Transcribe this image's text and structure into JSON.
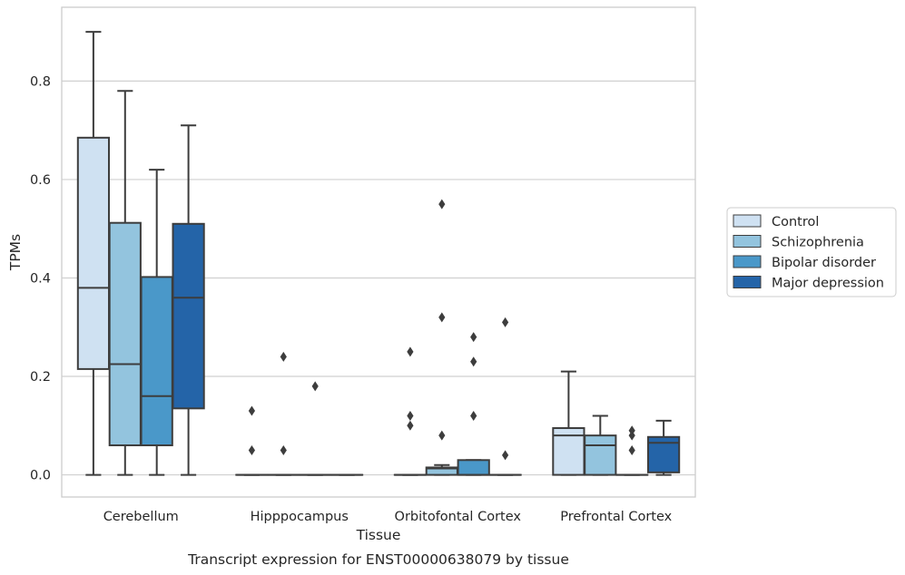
{
  "chart_data": {
    "type": "box",
    "xlabel": "Tissue",
    "ylabel": "TPMs",
    "caption": "Transcript expression for ENST00000638079 by tissue",
    "categories": [
      "Cerebellum",
      "Hipppocampus",
      "Orbitofontal Cortex",
      "Prefrontal Cortex"
    ],
    "ylim": [
      -0.045,
      0.95
    ],
    "yticks": [
      0.0,
      0.2,
      0.4,
      0.6,
      0.8
    ],
    "ytick_labels": [
      "0.0",
      "0.2",
      "0.4",
      "0.6",
      "0.8"
    ],
    "grid": "horizontal",
    "legend_placement": "right",
    "colors": {
      "Control": "#cfe1f2",
      "Schizophrenia": "#93c4de",
      "Bipolar disorder": "#4a98c9",
      "Major depression": "#2464a8",
      "line": "#3d3d3d",
      "grid": "#d0d0d0",
      "frame": "#cccccc"
    },
    "series": [
      {
        "name": "Control",
        "boxes": [
          {
            "min": 0.0,
            "q1": 0.215,
            "median": 0.38,
            "q3": 0.685,
            "max": 0.9,
            "fliers": []
          },
          {
            "min": 0.0,
            "q1": 0.0,
            "median": 0.0,
            "q3": 0.0,
            "max": 0.0,
            "fliers": [
              0.05,
              0.13
            ]
          },
          {
            "min": 0.0,
            "q1": 0.0,
            "median": 0.0,
            "q3": 0.0,
            "max": 0.0,
            "fliers": [
              0.1,
              0.12,
              0.25
            ]
          },
          {
            "min": 0.0,
            "q1": 0.0,
            "median": 0.08,
            "q3": 0.095,
            "max": 0.21,
            "fliers": []
          }
        ]
      },
      {
        "name": "Schizophrenia",
        "boxes": [
          {
            "min": 0.0,
            "q1": 0.06,
            "median": 0.225,
            "q3": 0.512,
            "max": 0.78,
            "fliers": []
          },
          {
            "min": 0.0,
            "q1": 0.0,
            "median": 0.0,
            "q3": 0.0,
            "max": 0.0,
            "fliers": [
              0.05,
              0.24
            ]
          },
          {
            "min": 0.0,
            "q1": 0.0,
            "median": 0.013,
            "q3": 0.015,
            "max": 0.02,
            "fliers": [
              0.08,
              0.32,
              0.55
            ]
          },
          {
            "min": 0.0,
            "q1": 0.0,
            "median": 0.06,
            "q3": 0.08,
            "max": 0.12,
            "fliers": []
          }
        ]
      },
      {
        "name": "Bipolar disorder",
        "boxes": [
          {
            "min": 0.0,
            "q1": 0.06,
            "median": 0.16,
            "q3": 0.402,
            "max": 0.62,
            "fliers": []
          },
          {
            "min": 0.0,
            "q1": 0.0,
            "median": 0.0,
            "q3": 0.0,
            "max": 0.0,
            "fliers": [
              0.18
            ]
          },
          {
            "min": 0.0,
            "q1": 0.0,
            "median": 0.0,
            "q3": 0.03,
            "max": 0.03,
            "fliers": [
              0.12,
              0.23,
              0.28
            ]
          },
          {
            "min": 0.0,
            "q1": 0.0,
            "median": 0.0,
            "q3": 0.0,
            "max": 0.0,
            "fliers": [
              0.05,
              0.08,
              0.09
            ]
          }
        ]
      },
      {
        "name": "Major depression",
        "boxes": [
          {
            "min": 0.0,
            "q1": 0.135,
            "median": 0.36,
            "q3": 0.51,
            "max": 0.71,
            "fliers": []
          },
          {
            "min": 0.0,
            "q1": 0.0,
            "median": 0.0,
            "q3": 0.0,
            "max": 0.0,
            "fliers": []
          },
          {
            "min": 0.0,
            "q1": 0.0,
            "median": 0.0,
            "q3": 0.0,
            "max": 0.0,
            "fliers": [
              0.04,
              0.31
            ]
          },
          {
            "min": 0.0,
            "q1": 0.005,
            "median": 0.065,
            "q3": 0.077,
            "max": 0.11,
            "fliers": []
          }
        ]
      }
    ]
  }
}
